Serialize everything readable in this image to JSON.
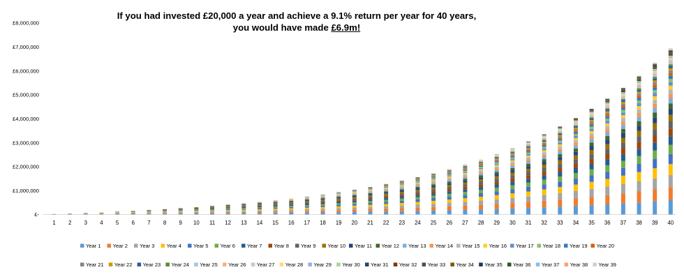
{
  "chart_data": {
    "type": "bar",
    "stacked": true,
    "title_line1": "If you had invested £20,000 a year and achieve a 9.1% return per year for 40 years,",
    "title_line2_prefix": "you would have made ",
    "title_line2_highlight": "£6.9m!",
    "xlabel": "",
    "ylabel": "",
    "ylim": [
      0,
      8000000
    ],
    "yticks": [
      "£-",
      "£1,000,000",
      "£2,000,000",
      "£3,000,000",
      "£4,000,000",
      "£5,000,000",
      "£6,000,000",
      "£7,000,000",
      "£8,000,000"
    ],
    "categories": [
      "1",
      "2",
      "3",
      "4",
      "5",
      "6",
      "7",
      "8",
      "9",
      "10",
      "11",
      "12",
      "13",
      "14",
      "15",
      "16",
      "17",
      "18",
      "19",
      "20",
      "21",
      "22",
      "23",
      "24",
      "25",
      "26",
      "27",
      "28",
      "29",
      "30",
      "31",
      "32",
      "33",
      "34",
      "35",
      "36",
      "37",
      "38",
      "39",
      "40"
    ],
    "annual_investment": 20000,
    "annual_return": 0.091,
    "series_names": [
      "Year 1",
      "Year 2",
      "Year 3",
      "Year 4",
      "Year 5",
      "Year 6",
      "Year 7",
      "Year 8",
      "Year 9",
      "Year 10",
      "Year 11",
      "Year 12",
      "Year 13",
      "Year 14",
      "Year 15",
      "Year 16",
      "Year 17",
      "Year 18",
      "Year 19",
      "Year 20",
      "Year 21",
      "Year 22",
      "Year 23",
      "Year 24",
      "Year 25",
      "Year 26",
      "Year 27",
      "Year 28",
      "Year 29",
      "Year 30",
      "Year 31",
      "Year 32",
      "Year 33",
      "Year 34",
      "Year 35",
      "Year 36",
      "Year 37",
      "Year 38",
      "Year 39"
    ],
    "palette": [
      "#5B9BD5",
      "#ED7D31",
      "#A5A5A5",
      "#FFC000",
      "#4472C4",
      "#70AD47",
      "#255E91",
      "#9E480E",
      "#636363",
      "#997300",
      "#264478",
      "#43682B",
      "#7CAFDD",
      "#F1975A",
      "#B7B7B7",
      "#FFCD33",
      "#698ED0",
      "#8CC168",
      "#327DC2",
      "#D26012",
      "#848484",
      "#CC9A00",
      "#335AA1",
      "#5A8A39",
      "#A3C7E7",
      "#F5B183",
      "#C9C9C9",
      "#FFDB6F",
      "#96B0DE",
      "#AFD396",
      "#1E4A73",
      "#7E390B",
      "#4F4F4F",
      "#7A5C00",
      "#1E3660",
      "#365322",
      "#8FBCE6",
      "#F4A378",
      "#D0D0D0"
    ],
    "grid": false,
    "legend_position": "bottom"
  }
}
